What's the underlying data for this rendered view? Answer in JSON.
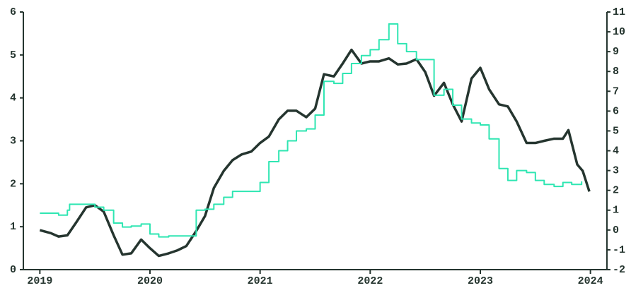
{
  "chart_data": {
    "type": "line",
    "xlim": [
      2018.85,
      2024.15
    ],
    "xticks": [
      2019,
      2020,
      2021,
      2022,
      2023,
      2024
    ],
    "ylim": [
      0,
      6
    ],
    "yticks": [
      0,
      1,
      2,
      3,
      4,
      5,
      6
    ],
    "y2lim": [
      -2,
      11
    ],
    "y2ticks": [
      -2,
      -1,
      0,
      1,
      2,
      3,
      4,
      5,
      6,
      7,
      8,
      9,
      10,
      11
    ],
    "series": [
      {
        "color": "#25352f",
        "step": false,
        "x": [
          2019.0,
          2019.1,
          2019.17,
          2019.25,
          2019.33,
          2019.42,
          2019.5,
          2019.58,
          2019.67,
          2019.75,
          2019.83,
          2019.92,
          2020.0,
          2020.08,
          2020.17,
          2020.25,
          2020.33,
          2020.42,
          2020.5,
          2020.58,
          2020.67,
          2020.75,
          2020.83,
          2020.92,
          2021.0,
          2021.08,
          2021.17,
          2021.25,
          2021.33,
          2021.42,
          2021.5,
          2021.58,
          2021.67,
          2021.75,
          2021.83,
          2021.92,
          2022.0,
          2022.08,
          2022.17,
          2022.25,
          2022.33,
          2022.42,
          2022.5,
          2022.58,
          2022.67,
          2022.75,
          2022.83,
          2022.92,
          2023.0,
          2023.08,
          2023.17,
          2023.25,
          2023.33,
          2023.42,
          2023.5,
          2023.58,
          2023.67,
          2023.75,
          2023.8,
          2023.88,
          2023.93,
          2023.99
        ],
        "values": [
          0.92,
          0.85,
          0.77,
          0.8,
          1.1,
          1.45,
          1.5,
          1.35,
          0.8,
          0.35,
          0.38,
          0.7,
          0.5,
          0.32,
          0.38,
          0.45,
          0.55,
          0.9,
          1.25,
          1.9,
          2.3,
          2.55,
          2.68,
          2.75,
          2.95,
          3.1,
          3.5,
          3.7,
          3.7,
          3.55,
          3.75,
          4.55,
          4.5,
          4.8,
          5.12,
          4.8,
          4.85,
          4.85,
          4.92,
          4.78,
          4.8,
          4.9,
          4.6,
          4.05,
          4.35,
          3.85,
          3.45,
          4.45,
          4.7,
          4.2,
          3.85,
          3.8,
          3.45,
          2.95,
          2.95,
          3.0,
          3.05,
          3.05,
          3.25,
          2.45,
          2.3,
          1.82
        ]
      },
      {
        "color": "#2fe6b2",
        "step": true,
        "axis": "y2",
        "x": [
          2019.0,
          2019.17,
          2019.25,
          2019.27,
          2019.5,
          2019.58,
          2019.67,
          2019.75,
          2019.83,
          2019.92,
          2020.0,
          2020.08,
          2020.17,
          2020.33,
          2020.42,
          2020.5,
          2020.58,
          2020.67,
          2020.75,
          2020.92,
          2021.0,
          2021.08,
          2021.17,
          2021.25,
          2021.33,
          2021.42,
          2021.5,
          2021.58,
          2021.67,
          2021.75,
          2021.83,
          2021.92,
          2022.0,
          2022.08,
          2022.17,
          2022.25,
          2022.33,
          2022.42,
          2022.5,
          2022.58,
          2022.67,
          2022.75,
          2022.83,
          2022.92,
          2023.0,
          2023.08,
          2023.17,
          2023.25,
          2023.33,
          2023.42,
          2023.5,
          2023.58,
          2023.67,
          2023.75,
          2023.83,
          2023.92
        ],
        "values": [
          0.85,
          0.75,
          1.0,
          1.3,
          1.15,
          1.0,
          0.35,
          0.15,
          0.2,
          0.3,
          -0.2,
          -0.35,
          -0.3,
          -0.3,
          1.0,
          1.05,
          1.3,
          1.65,
          1.95,
          1.95,
          2.4,
          3.45,
          4.0,
          4.5,
          5.0,
          5.1,
          5.8,
          7.5,
          7.4,
          7.9,
          8.4,
          8.8,
          9.1,
          9.6,
          10.4,
          9.4,
          9.0,
          8.6,
          8.6,
          6.8,
          7.1,
          6.3,
          5.6,
          5.4,
          5.3,
          4.6,
          3.1,
          2.5,
          3.0,
          2.9,
          2.5,
          2.3,
          2.2,
          2.4,
          2.3,
          2.45
        ]
      }
    ]
  }
}
